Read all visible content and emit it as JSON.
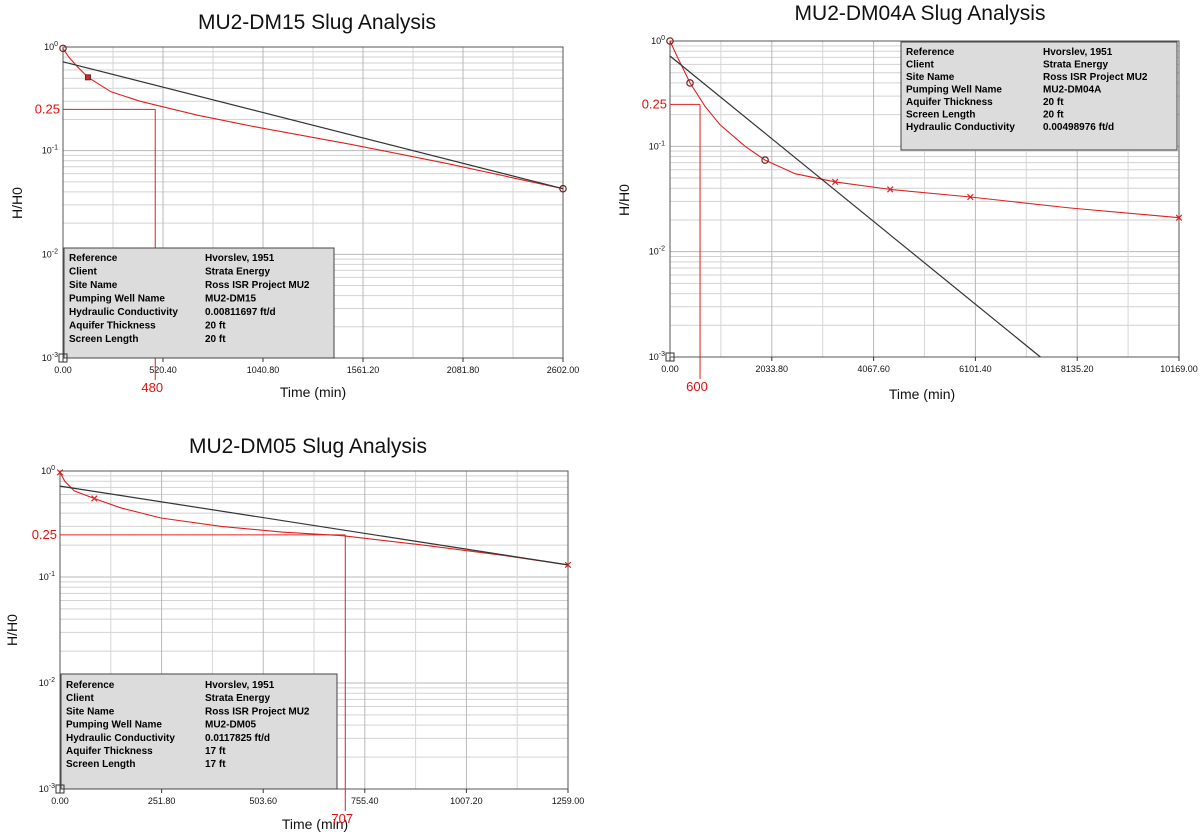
{
  "chart_data": [
    {
      "type": "line",
      "title": "MU2-DM15 Slug Analysis",
      "xlabel": "Time (min)",
      "ylabel": "H/H0",
      "xscale": "linear",
      "yscale": "log",
      "xlim": [
        0,
        2602
      ],
      "ylim": [
        0.001,
        1
      ],
      "x_tick_labels": [
        "0.00",
        "520.40",
        "1040.80",
        "1561.20",
        "2081.80",
        "2602.00"
      ],
      "y_tick_labels": [
        {
          "base": "10",
          "exp": "0",
          "value": 1
        },
        {
          "base": "10",
          "exp": "-1",
          "value": 0.1
        },
        {
          "base": "10",
          "exp": "-2",
          "value": 0.01
        },
        {
          "base": "10",
          "exp": "-3",
          "value": 0.001
        }
      ],
      "grid": true,
      "series": [
        {
          "role": "observed",
          "color": "#e02020",
          "x": [
            0,
            30,
            70,
            130,
            250,
            400,
            700,
            1000,
            1500,
            2000,
            2602
          ],
          "y": [
            0.97,
            0.8,
            0.66,
            0.51,
            0.37,
            0.3,
            0.22,
            0.17,
            0.115,
            0.075,
            0.043
          ],
          "markers": [
            {
              "x": 0,
              "y": 0.97,
              "shape": "circle"
            },
            {
              "x": 130,
              "y": 0.51,
              "shape": "square"
            },
            {
              "x": 2602,
              "y": 0.043,
              "shape": "circle"
            }
          ]
        },
        {
          "role": "fit",
          "color": "#333333",
          "x": [
            0,
            2602
          ],
          "y": [
            0.72,
            0.043
          ]
        }
      ],
      "guide": {
        "y": 0.25,
        "x": 480,
        "y_label": "0.25",
        "x_label": "480"
      },
      "info_box": [
        {
          "label": "Reference",
          "value": "Hvorslev, 1951"
        },
        {
          "label": "Client",
          "value": "Strata Energy"
        },
        {
          "label": "Site Name",
          "value": "Ross ISR Project MU2"
        },
        {
          "label": "Pumping Well Name",
          "value": "MU2-DM15"
        },
        {
          "label": "Hydraulic Conductivity",
          "value": "0.00811697 ft/d"
        },
        {
          "label": "Aquifer Thickness",
          "value": "20 ft"
        },
        {
          "label": "Screen Length",
          "value": "20 ft"
        }
      ],
      "info_box_placement": "bottom-left"
    },
    {
      "type": "line",
      "title": "MU2-DM04A Slug Analysis",
      "xlabel": "Time (min)",
      "ylabel": "H/H0",
      "xscale": "linear",
      "yscale": "log",
      "xlim": [
        0,
        10169
      ],
      "ylim": [
        0.001,
        1
      ],
      "x_tick_labels": [
        "0.00",
        "2033.80",
        "4067.60",
        "6101.40",
        "8135.20",
        "10169.00"
      ],
      "y_tick_labels": [
        {
          "base": "10",
          "exp": "0",
          "value": 1
        },
        {
          "base": "10",
          "exp": "-1",
          "value": 0.1
        },
        {
          "base": "10",
          "exp": "-2",
          "value": 0.01
        },
        {
          "base": "10",
          "exp": "-3",
          "value": 0.001
        }
      ],
      "grid": true,
      "series": [
        {
          "role": "observed",
          "color": "#e02020",
          "x": [
            0,
            150,
            400,
            700,
            1000,
            1500,
            1900,
            2500,
            3300,
            4400,
            6000,
            8000,
            10169
          ],
          "y": [
            1.0,
            0.7,
            0.4,
            0.24,
            0.16,
            0.1,
            0.074,
            0.055,
            0.046,
            0.039,
            0.033,
            0.026,
            0.021
          ],
          "markers": [
            {
              "x": 0,
              "y": 1.0,
              "shape": "circle"
            },
            {
              "x": 400,
              "y": 0.4,
              "shape": "circle"
            },
            {
              "x": 1900,
              "y": 0.074,
              "shape": "circle"
            },
            {
              "x": 3300,
              "y": 0.046,
              "shape": "x"
            },
            {
              "x": 4400,
              "y": 0.039,
              "shape": "x"
            },
            {
              "x": 6000,
              "y": 0.033,
              "shape": "x"
            },
            {
              "x": 10169,
              "y": 0.021,
              "shape": "x"
            }
          ]
        },
        {
          "role": "fit",
          "color": "#333333",
          "x": [
            0,
            7400
          ],
          "y": [
            0.72,
            0.001
          ]
        }
      ],
      "guide": {
        "y": 0.25,
        "x": 600,
        "y_label": "0.25",
        "x_label": "600"
      },
      "info_box": [
        {
          "label": "Reference",
          "value": "Hvorslev, 1951"
        },
        {
          "label": "Client",
          "value": "Strata Energy"
        },
        {
          "label": "Site Name",
          "value": "Ross ISR Project MU2"
        },
        {
          "label": "Pumping Well Name",
          "value": "MU2-DM04A"
        },
        {
          "label": "Aquifer Thickness",
          "value": "20 ft"
        },
        {
          "label": "Screen Length",
          "value": "20 ft"
        },
        {
          "label": "Hydraulic Conductivity",
          "value": "0.00498976 ft/d"
        }
      ],
      "info_box_placement": "top-right"
    },
    {
      "type": "line",
      "title": "MU2-DM05 Slug Analysis",
      "xlabel": "Time (min)",
      "ylabel": "H/H0",
      "xscale": "linear",
      "yscale": "log",
      "xlim": [
        0,
        1259
      ],
      "ylim": [
        0.001,
        1
      ],
      "x_tick_labels": [
        "0.00",
        "251.80",
        "503.60",
        "755.40",
        "1007.20",
        "1259.00"
      ],
      "y_tick_labels": [
        {
          "base": "10",
          "exp": "0",
          "value": 1
        },
        {
          "base": "10",
          "exp": "-1",
          "value": 0.1
        },
        {
          "base": "10",
          "exp": "-2",
          "value": 0.01
        },
        {
          "base": "10",
          "exp": "-3",
          "value": 0.001
        }
      ],
      "grid": true,
      "series": [
        {
          "role": "observed",
          "color": "#e02020",
          "x": [
            0,
            12,
            35,
            85,
            150,
            250,
            400,
            550,
            700,
            900,
            1100,
            1259
          ],
          "y": [
            0.97,
            0.8,
            0.65,
            0.55,
            0.45,
            0.36,
            0.3,
            0.265,
            0.245,
            0.2,
            0.16,
            0.13
          ],
          "markers": [
            {
              "x": 0,
              "y": 0.97,
              "shape": "x"
            },
            {
              "x": 85,
              "y": 0.55,
              "shape": "x"
            },
            {
              "x": 1259,
              "y": 0.13,
              "shape": "x"
            }
          ]
        },
        {
          "role": "fit",
          "color": "#333333",
          "x": [
            0,
            1259
          ],
          "y": [
            0.72,
            0.13
          ]
        }
      ],
      "guide": {
        "y": 0.25,
        "x": 707,
        "y_label": "0.25",
        "x_label": "707"
      },
      "info_box": [
        {
          "label": "Reference",
          "value": "Hvorslev, 1951"
        },
        {
          "label": "Client",
          "value": "Strata Energy"
        },
        {
          "label": "Site Name",
          "value": "Ross ISR Project MU2"
        },
        {
          "label": "Pumping Well Name",
          "value": "MU2-DM05"
        },
        {
          "label": "Hydraulic Conductivity",
          "value": "0.0117825 ft/d"
        },
        {
          "label": "Aquifer Thickness",
          "value": "17 ft"
        },
        {
          "label": "Screen Length",
          "value": "17 ft"
        }
      ],
      "info_box_placement": "bottom-left"
    }
  ]
}
